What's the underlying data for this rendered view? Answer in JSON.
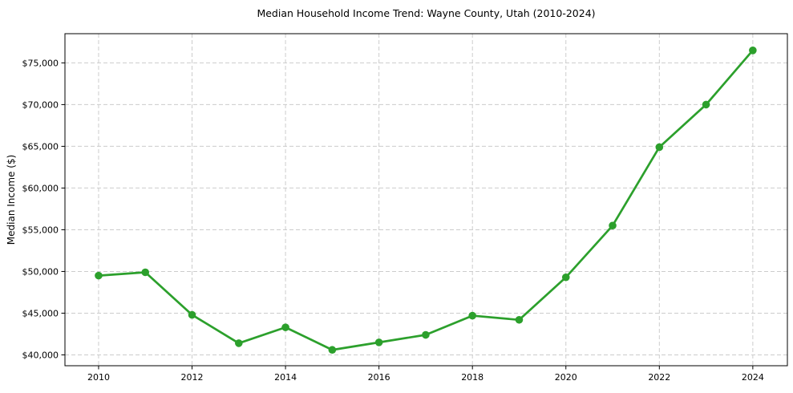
{
  "chart_data": {
    "type": "line",
    "title": "Median Household Income Trend: Wayne County, Utah (2010-2024)",
    "xlabel": "",
    "ylabel": "Median Income ($)",
    "x": [
      2010,
      2011,
      2012,
      2013,
      2014,
      2015,
      2016,
      2017,
      2018,
      2019,
      2020,
      2021,
      2022,
      2023,
      2024
    ],
    "series": [
      {
        "name": "Median Household Income",
        "values": [
          49500,
          49900,
          44800,
          41400,
          43300,
          40600,
          41500,
          42400,
          44700,
          44200,
          49300,
          55500,
          64900,
          70000,
          76500
        ]
      }
    ],
    "xlim": [
      2009.28,
      2024.74
    ],
    "ylim": [
      38700,
      78500
    ],
    "xticks": [
      2010,
      2012,
      2014,
      2016,
      2018,
      2020,
      2022,
      2024
    ],
    "xtick_labels": [
      "2010",
      "2012",
      "2014",
      "2016",
      "2018",
      "2020",
      "2022",
      "2024"
    ],
    "yticks": [
      40000,
      45000,
      50000,
      55000,
      60000,
      65000,
      70000,
      75000
    ],
    "ytick_labels": [
      "$40,000",
      "$45,000",
      "$50,000",
      "$55,000",
      "$60,000",
      "$65,000",
      "$70,000",
      "$75,000"
    ],
    "grid": true,
    "legend": false,
    "line_color": "#2ca02c",
    "marker": "circle",
    "marker_radius": 4.8,
    "line_width": 2.7,
    "background_color": "#ffffff",
    "grid_color": "#cccccc",
    "axis_color": "#000000"
  }
}
